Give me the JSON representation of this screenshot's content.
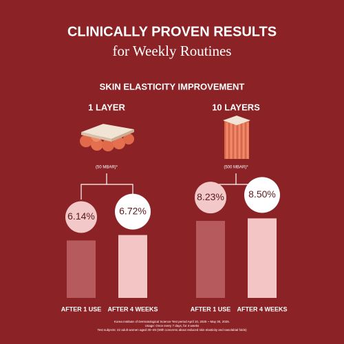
{
  "header": {
    "title": "CLINICALLY PROVEN RESULTS",
    "subtitle": "for Weekly Routines"
  },
  "section_title": "SKIN ELASTICITY IMPROVEMENT",
  "chart_data": [
    {
      "type": "bar",
      "title": "1 LAYER",
      "subtitle": "(50 MBAR)*",
      "categories": [
        "AFTER 1 USE",
        "AFTER 4 WEEKS"
      ],
      "values": [
        6.14,
        6.72
      ],
      "value_labels": [
        "6.14%",
        "6.72%"
      ],
      "colors": [
        "#b65a5d",
        "#f3c5c5"
      ]
    },
    {
      "type": "bar",
      "title": "10 LAYERS",
      "subtitle": "(500 MBAR)*",
      "categories": [
        "AFTER 1 USE",
        "AFTER 4 WEEKS"
      ],
      "values": [
        8.23,
        8.5
      ],
      "value_labels": [
        "8.23%",
        "8.50%"
      ],
      "colors": [
        "#b65a5d",
        "#f3c5c5"
      ]
    }
  ],
  "footnotes": [
    "Korea Institute of Dermatological Science Test period April 10, 2025 ~ May 30, 2025.",
    "Usage: Once every 7 days, for 4 weeks",
    "Test subjects: 22 adult women aged 30~49 (With concerns about reduced skin elasticity and nasolabial folds)"
  ]
}
